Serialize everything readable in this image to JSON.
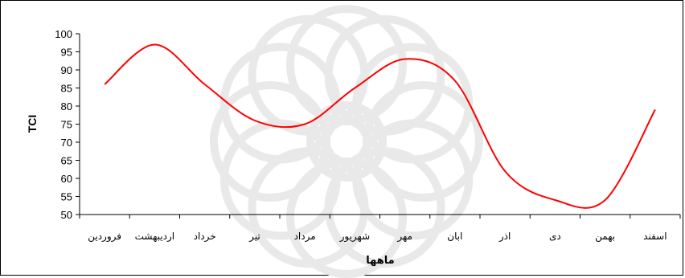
{
  "chart_data": {
    "type": "line",
    "title": "",
    "xlabel": "ماهها",
    "ylabel": "TCI",
    "categories": [
      "فروردین",
      "اردیبهشت",
      "خرداد",
      "تیر",
      "مرداد",
      "شهریور",
      "مهر",
      "ابان",
      "اذر",
      "دی",
      "بهمن",
      "اسفند"
    ],
    "series": [
      {
        "values": [
          86,
          97,
          86,
          76,
          75,
          85,
          93,
          87,
          62,
          54,
          54,
          79
        ]
      }
    ],
    "ylim": [
      50,
      100
    ],
    "yticks": [
      50,
      55,
      60,
      65,
      70,
      75,
      80,
      85,
      90,
      95,
      100
    ],
    "grid": false,
    "legend": "none",
    "line_color": "#ff0000"
  }
}
